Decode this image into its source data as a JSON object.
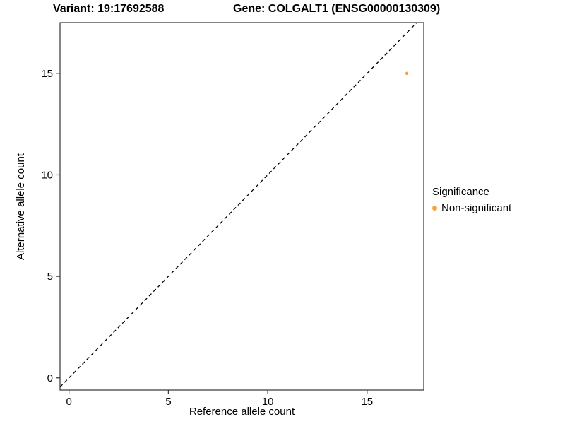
{
  "header": {
    "variant_title": "Variant: 19:17692588",
    "gene_title": "Gene: COLGALT1 (ENSG00000130309)"
  },
  "chart_data": {
    "type": "scatter",
    "title_left": "Variant: 19:17692588",
    "title_right": "Gene: COLGALT1 (ENSG00000130309)",
    "xlabel": "Reference allele count",
    "ylabel": "Alternative allele count",
    "xlim": [
      -0.45,
      17.85
    ],
    "ylim": [
      -0.6,
      17.5
    ],
    "xticks": [
      0,
      5,
      10,
      15
    ],
    "yticks": [
      0,
      5,
      10,
      15
    ],
    "grid": false,
    "points": [
      {
        "x": 17,
        "y": 15,
        "series": "Non-significant"
      }
    ],
    "identity_line": {
      "style": "dashed",
      "from": [
        -0.45,
        -0.45
      ],
      "to": [
        17.5,
        17.5
      ]
    },
    "legend": {
      "title": "Significance",
      "position": "right",
      "entries": [
        {
          "label": "Non-significant",
          "color": "#F9A03F"
        }
      ]
    }
  },
  "colors": {
    "point": "#F9A03F",
    "panel_border": "#333333",
    "identity_line": "#000000",
    "axis_text": "#000000",
    "background": "#ffffff"
  }
}
